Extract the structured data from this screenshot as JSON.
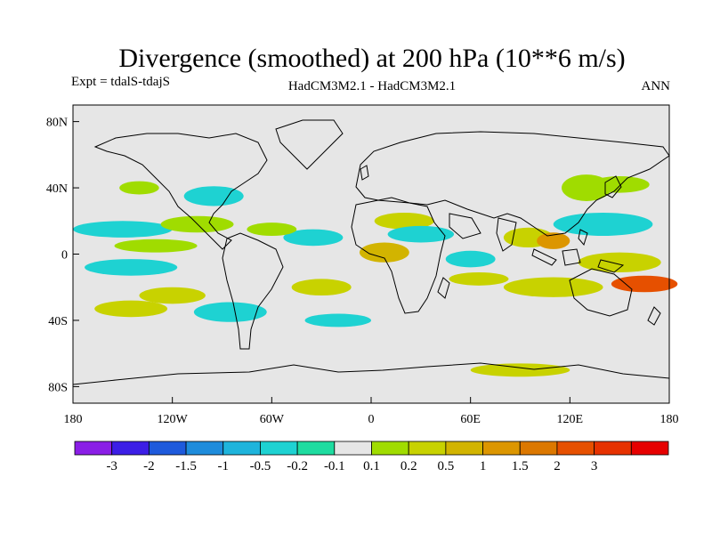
{
  "chart_data": {
    "type": "heatmap",
    "title": "Divergence (smoothed) at 200 hPa (10**6 m/s)",
    "subtitle_left": "Expt = tdalS-tdajS",
    "subtitle_center": "HadCM3M2.1 - HadCM3M2.1",
    "subtitle_right": "ANN",
    "lon_range": [
      -180,
      180
    ],
    "lat_range": [
      -90,
      90
    ],
    "x_ticks": [
      {
        "value": -180,
        "label": "180"
      },
      {
        "value": -120,
        "label": "120W"
      },
      {
        "value": -60,
        "label": "60W"
      },
      {
        "value": 0,
        "label": "0"
      },
      {
        "value": 60,
        "label": "60E"
      },
      {
        "value": 120,
        "label": "120E"
      },
      {
        "value": 180,
        "label": "180"
      }
    ],
    "y_ticks": [
      {
        "value": 80,
        "label": "80N"
      },
      {
        "value": 40,
        "label": "40N"
      },
      {
        "value": 0,
        "label": "0"
      },
      {
        "value": -40,
        "label": "40S"
      },
      {
        "value": -80,
        "label": "80S"
      }
    ],
    "background_color": "#e6e6e6",
    "colorbar": {
      "colors": [
        "#8a1ee6",
        "#3c1ee6",
        "#1e5adc",
        "#1e8cdc",
        "#1eb4dc",
        "#1ed2d2",
        "#1edca0",
        "#e6e6e6",
        "#a0dc00",
        "#c8d200",
        "#d2b400",
        "#dc9600",
        "#dc7800",
        "#e65000",
        "#e63200",
        "#e60000"
      ],
      "labels": [
        "-3",
        "-2",
        "-1.5",
        "-1",
        "-0.5",
        "-0.2",
        "-0.1",
        "0.1",
        "0.2",
        "0.5",
        "1",
        "1.5",
        "2",
        "3"
      ]
    },
    "anomaly_regions": [
      {
        "lon": -150,
        "lat": 15,
        "rlon": 30,
        "rlat": 5,
        "level": 5
      },
      {
        "lon": -140,
        "lat": 40,
        "rlon": 12,
        "rlat": 4,
        "level": 8
      },
      {
        "lon": -95,
        "lat": 35,
        "rlon": 18,
        "rlat": 6,
        "level": 5
      },
      {
        "lon": -105,
        "lat": 18,
        "rlon": 22,
        "rlat": 5,
        "level": 8
      },
      {
        "lon": -145,
        "lat": -8,
        "rlon": 28,
        "rlat": 5,
        "level": 5
      },
      {
        "lon": -130,
        "lat": 5,
        "rlon": 25,
        "rlat": 4,
        "level": 8
      },
      {
        "lon": -120,
        "lat": -25,
        "rlon": 20,
        "rlat": 5,
        "level": 9
      },
      {
        "lon": -145,
        "lat": -33,
        "rlon": 22,
        "rlat": 5,
        "level": 9
      },
      {
        "lon": -85,
        "lat": -35,
        "rlon": 22,
        "rlat": 6,
        "level": 5
      },
      {
        "lon": -35,
        "lat": 10,
        "rlon": 18,
        "rlat": 5,
        "level": 5
      },
      {
        "lon": -60,
        "lat": 15,
        "rlon": 15,
        "rlat": 4,
        "level": 8
      },
      {
        "lon": -30,
        "lat": -20,
        "rlon": 18,
        "rlat": 5,
        "level": 9
      },
      {
        "lon": -20,
        "lat": -40,
        "rlon": 20,
        "rlat": 4,
        "level": 5
      },
      {
        "lon": 8,
        "lat": 1,
        "rlon": 15,
        "rlat": 6,
        "level": 10
      },
      {
        "lon": 20,
        "lat": 20,
        "rlon": 18,
        "rlat": 5,
        "level": 9
      },
      {
        "lon": 30,
        "lat": 12,
        "rlon": 20,
        "rlat": 5,
        "level": 5
      },
      {
        "lon": 60,
        "lat": -3,
        "rlon": 15,
        "rlat": 5,
        "level": 5
      },
      {
        "lon": 65,
        "lat": -15,
        "rlon": 18,
        "rlat": 4,
        "level": 9
      },
      {
        "lon": 95,
        "lat": 10,
        "rlon": 15,
        "rlat": 6,
        "level": 9
      },
      {
        "lon": 110,
        "lat": 8,
        "rlon": 10,
        "rlat": 5,
        "level": 11
      },
      {
        "lon": 140,
        "lat": 18,
        "rlon": 30,
        "rlat": 7,
        "level": 5
      },
      {
        "lon": 130,
        "lat": 40,
        "rlon": 15,
        "rlat": 8,
        "level": 8
      },
      {
        "lon": 150,
        "lat": -5,
        "rlon": 25,
        "rlat": 6,
        "level": 9
      },
      {
        "lon": 110,
        "lat": -20,
        "rlon": 30,
        "rlat": 6,
        "level": 9
      },
      {
        "lon": 165,
        "lat": -18,
        "rlon": 20,
        "rlat": 5,
        "level": 13
      },
      {
        "lon": 150,
        "lat": 42,
        "rlon": 18,
        "rlat": 5,
        "level": 8
      },
      {
        "lon": 90,
        "lat": -70,
        "rlon": 30,
        "rlat": 4,
        "level": 9
      }
    ]
  }
}
